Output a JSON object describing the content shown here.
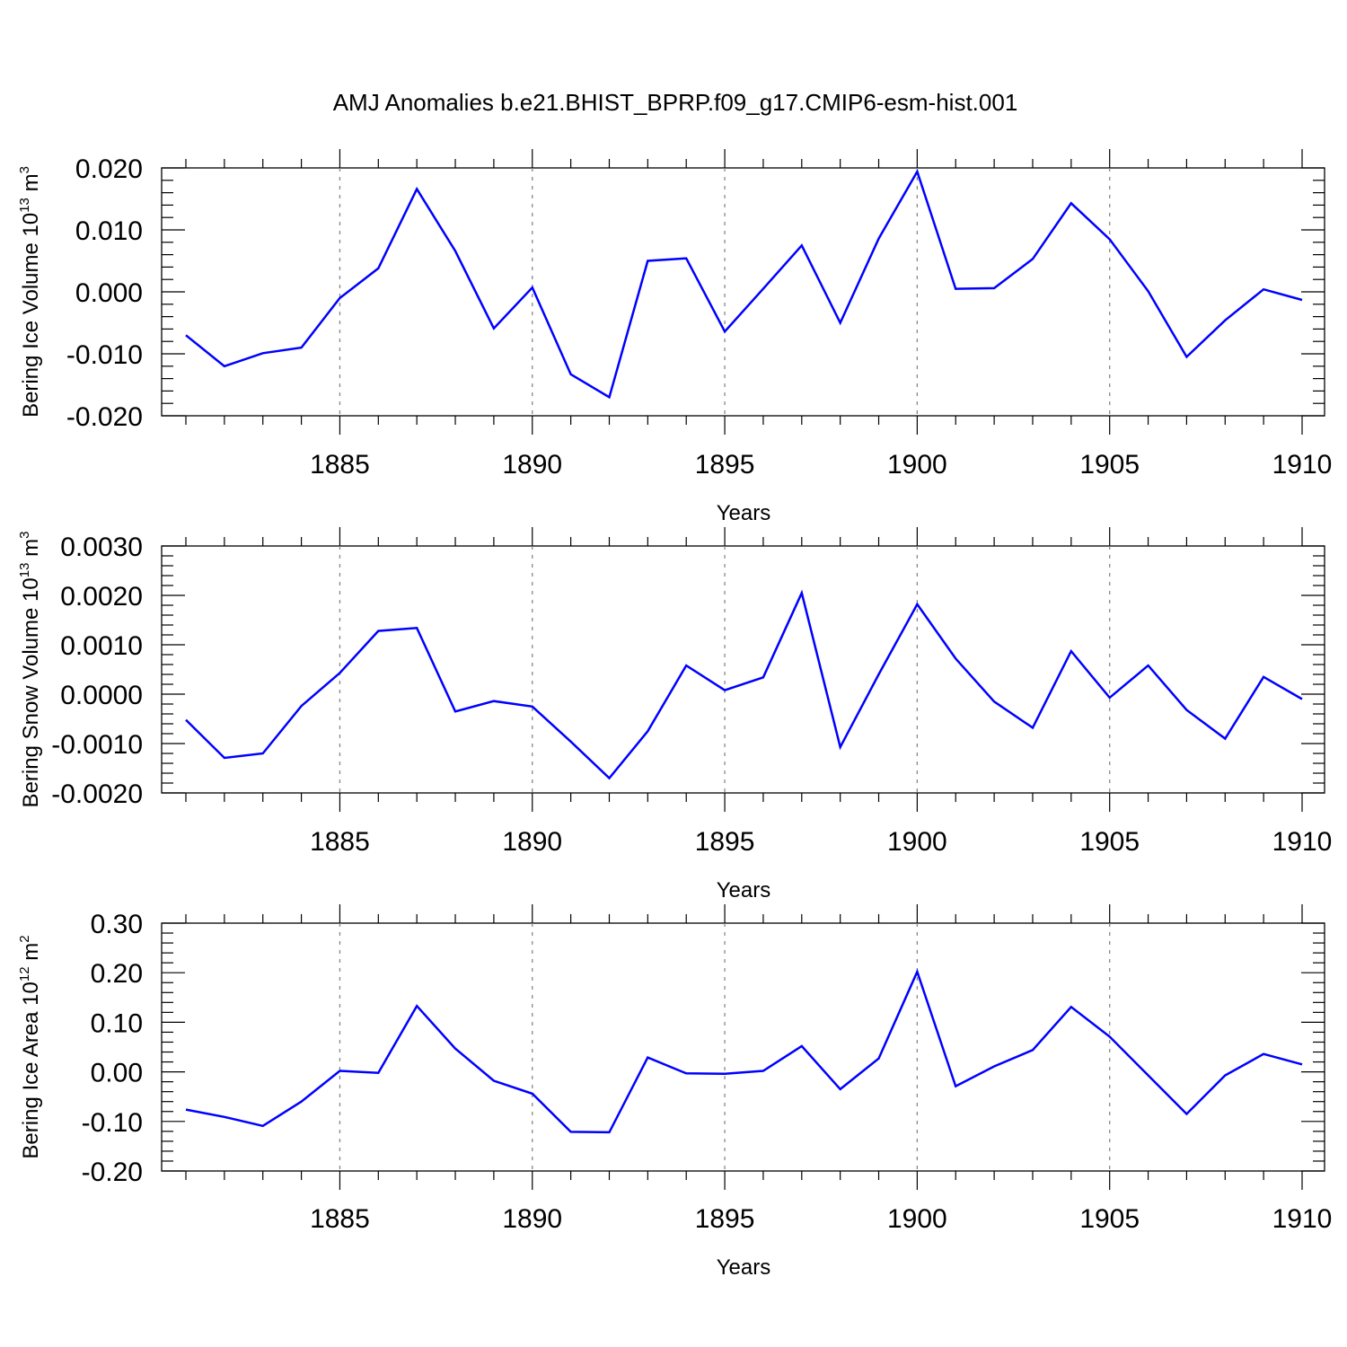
{
  "title": "AMJ Anomalies b.e21.BHIST_BPRP.f09_g17.CMIP6-esm-hist.001",
  "colors": {
    "line": "#0000ff",
    "grid": "#888888",
    "axis": "#000000"
  },
  "chart_data": [
    {
      "type": "line",
      "xlabel": "Years",
      "ylabel": {
        "main": "Bering Ice Volume 10",
        "exp": "13",
        "unit": " m",
        "unit_exp": "3"
      },
      "xlim": [
        1881,
        1910
      ],
      "ylim": [
        -0.02,
        0.02
      ],
      "x_ticks": [
        1885,
        1890,
        1895,
        1900,
        1905,
        1910
      ],
      "y_ticks": [
        -0.02,
        -0.01,
        0.0,
        0.01,
        0.02
      ],
      "y_tick_labels": [
        "-0.020",
        "-0.010",
        "0.000",
        "0.010",
        "0.020"
      ],
      "x": [
        1881,
        1882,
        1883,
        1884,
        1885,
        1886,
        1887,
        1888,
        1889,
        1890,
        1891,
        1892,
        1893,
        1894,
        1895,
        1896,
        1897,
        1898,
        1899,
        1900,
        1901,
        1902,
        1903,
        1904,
        1905,
        1906,
        1907,
        1908,
        1909,
        1910
      ],
      "series": [
        {
          "name": "Bering Ice Volume",
          "values": [
            -0.007,
            -0.012,
            -0.0099,
            -0.009,
            -0.001,
            0.0038,
            0.0166,
            0.0066,
            -0.0059,
            0.0007,
            -0.0133,
            -0.017,
            0.005,
            0.0054,
            -0.0064,
            0.0005,
            0.0075,
            -0.005,
            0.0086,
            0.0194,
            0.0005,
            0.0006,
            0.0053,
            0.0143,
            0.0085,
            0.0001,
            -0.0105,
            -0.0046,
            0.0004,
            -0.0013
          ]
        }
      ]
    },
    {
      "type": "line",
      "xlabel": "Years",
      "ylabel": {
        "main": "Bering Snow Volume 10",
        "exp": "13",
        "unit": " m",
        "unit_exp": "3"
      },
      "xlim": [
        1881,
        1910
      ],
      "ylim": [
        -0.002,
        0.003
      ],
      "x_ticks": [
        1885,
        1890,
        1895,
        1900,
        1905,
        1910
      ],
      "y_ticks": [
        -0.002,
        -0.001,
        0.0,
        0.001,
        0.002,
        0.003
      ],
      "y_tick_labels": [
        "-0.0020",
        "-0.0010",
        "0.0000",
        "0.0010",
        "0.0020",
        "0.0030"
      ],
      "x": [
        1881,
        1882,
        1883,
        1884,
        1885,
        1886,
        1887,
        1888,
        1889,
        1890,
        1891,
        1892,
        1893,
        1894,
        1895,
        1896,
        1897,
        1898,
        1899,
        1900,
        1901,
        1902,
        1903,
        1904,
        1905,
        1906,
        1907,
        1908,
        1909,
        1910
      ],
      "series": [
        {
          "name": "Bering Snow Volume",
          "values": [
            -0.00052,
            -0.00129,
            -0.0012,
            -0.00024,
            0.00043,
            0.00128,
            0.00134,
            -0.00035,
            -0.00014,
            -0.00025,
            -0.00096,
            -0.0017,
            -0.00075,
            0.00058,
            8e-05,
            0.00034,
            0.00205,
            -0.00107,
            0.0004,
            0.00182,
            0.00072,
            -0.00015,
            -0.00068,
            0.00087,
            -7e-05,
            0.00058,
            -0.00032,
            -0.0009,
            0.00035,
            -0.0001
          ]
        }
      ]
    },
    {
      "type": "line",
      "xlabel": "Years",
      "ylabel": {
        "main": "Bering Ice Area 10",
        "exp": "12",
        "unit": " m",
        "unit_exp": "2"
      },
      "xlim": [
        1881,
        1910
      ],
      "ylim": [
        -0.2,
        0.3
      ],
      "x_ticks": [
        1885,
        1890,
        1895,
        1900,
        1905,
        1910
      ],
      "y_ticks": [
        -0.2,
        -0.1,
        0.0,
        0.1,
        0.2,
        0.3
      ],
      "y_tick_labels": [
        "-0.20",
        "-0.10",
        "0.00",
        "0.10",
        "0.20",
        "0.30"
      ],
      "x": [
        1881,
        1882,
        1883,
        1884,
        1885,
        1886,
        1887,
        1888,
        1889,
        1890,
        1891,
        1892,
        1893,
        1894,
        1895,
        1896,
        1897,
        1898,
        1899,
        1900,
        1901,
        1902,
        1903,
        1904,
        1905,
        1906,
        1907,
        1908,
        1909,
        1910
      ],
      "series": [
        {
          "name": "Bering Ice Area",
          "values": [
            -0.076,
            -0.091,
            -0.109,
            -0.06,
            0.002,
            -0.002,
            0.133,
            0.047,
            -0.018,
            -0.044,
            -0.121,
            -0.122,
            0.029,
            -0.003,
            -0.004,
            0.002,
            0.052,
            -0.035,
            0.027,
            0.202,
            -0.029,
            0.011,
            0.044,
            0.131,
            0.071,
            -0.007,
            -0.085,
            -0.007,
            0.036,
            0.015
          ]
        }
      ]
    }
  ]
}
